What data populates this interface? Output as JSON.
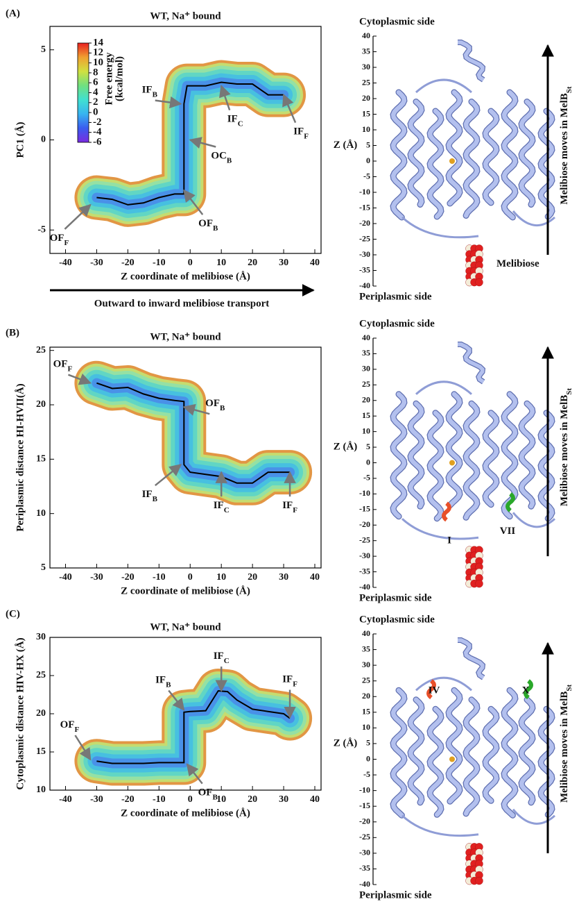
{
  "panels": [
    "(A)",
    "(B)",
    "(C)"
  ],
  "chart_data": [
    {
      "type": "energy_landscape",
      "title": "WT, Na⁺ bound",
      "x_label": "Z coordinate of melibiose (Å)",
      "y_label": "PC1 (Å)",
      "xlim": [
        -45,
        42
      ],
      "ylim": [
        -6.3,
        6.3
      ],
      "xticks": [
        -40,
        -30,
        -20,
        -10,
        0,
        10,
        20,
        30,
        40
      ],
      "yticks": [
        -5,
        0,
        5
      ],
      "path": {
        "x": [
          -30,
          -25,
          -20,
          -15,
          -10,
          -5,
          -2,
          -2,
          -2,
          -1,
          2,
          5,
          10,
          15,
          20,
          25,
          30
        ],
        "y": [
          -3.2,
          -3.3,
          -3.6,
          -3.5,
          -3.2,
          -3.0,
          -3.0,
          0,
          2,
          3,
          3,
          3,
          3.2,
          3.1,
          3.1,
          2.5,
          2.5
        ]
      },
      "color": "#000000",
      "surface_colors": [
        "#e0903a",
        "#c4df72",
        "#92e0a6",
        "#5ed5c6",
        "#46bfe2",
        "#4a8ee8"
      ],
      "annotations": [
        {
          "text": "OF",
          "sub": "F",
          "x": -32,
          "y": -3.6
        },
        {
          "text": "OF",
          "sub": "B",
          "x": -2,
          "y": -2.8
        },
        {
          "text": "OC",
          "sub": "B",
          "x": 0,
          "y": 0
        },
        {
          "text": "IF",
          "sub": "B",
          "x": -3,
          "y": 2
        },
        {
          "text": "IF",
          "sub": "C",
          "x": 10,
          "y": 3
        },
        {
          "text": "IF",
          "sub": "F",
          "x": 30,
          "y": 2.5
        }
      ],
      "colorbar": {
        "label": [
          "Free energy",
          "(kcal/mol)"
        ],
        "lim": [
          -6,
          14
        ],
        "ticks": [
          14,
          12,
          10,
          8,
          6,
          4,
          2,
          0,
          -2,
          -4,
          -6
        ],
        "colors": [
          "#7a2be0",
          "#3a5cf0",
          "#38b4f0",
          "#40e0d0",
          "#70e080",
          "#d0e040",
          "#f0a030",
          "#e82020"
        ]
      },
      "arrow_label": "Outward to inward melibiose transport"
    },
    {
      "type": "energy_landscape",
      "title": "WT, Na⁺ bound",
      "x_label": "Z coordinate of melibiose (Å)",
      "y_label": "Periplasmic distance HI-HVII(Å)",
      "xlim": [
        -45,
        42
      ],
      "ylim": [
        5,
        25.3
      ],
      "xticks": [
        -40,
        -30,
        -20,
        -10,
        0,
        10,
        20,
        30,
        40
      ],
      "yticks": [
        5,
        10,
        15,
        20,
        25
      ],
      "path": {
        "x": [
          -30,
          -25,
          -20,
          -15,
          -10,
          -5,
          -2,
          -2,
          -2,
          0,
          5,
          10,
          15,
          20,
          25,
          30,
          32
        ],
        "y": [
          22,
          21.5,
          21.6,
          21,
          20.6,
          20.4,
          20.3,
          17,
          14.5,
          13.8,
          13.6,
          13.4,
          12.8,
          12.8,
          13.8,
          13.8,
          13.8
        ]
      },
      "color": "#000000",
      "surface_colors": [
        "#e0903a",
        "#c4df72",
        "#92e0a6",
        "#5ed5c6",
        "#46bfe2",
        "#4a8ee8"
      ],
      "annotations": [
        {
          "text": "OF",
          "sub": "F",
          "x": -32,
          "y": 22
        },
        {
          "text": "OF",
          "sub": "B",
          "x": -2,
          "y": 19.8
        },
        {
          "text": "IF",
          "sub": "B",
          "x": -3,
          "y": 14.5
        },
        {
          "text": "IF",
          "sub": "C",
          "x": 10,
          "y": 13.8
        },
        {
          "text": "IF",
          "sub": "F",
          "x": 32,
          "y": 13.8
        }
      ]
    },
    {
      "type": "energy_landscape",
      "title": "WT, Na⁺ bound",
      "x_label": "Z coordinate of melibiose (Å)",
      "y_label": "Cytoplasmic distance HIV-HX (Å)",
      "xlim": [
        -45,
        42
      ],
      "ylim": [
        10,
        30
      ],
      "xticks": [
        -40,
        -30,
        -20,
        -10,
        0,
        10,
        20,
        30,
        40
      ],
      "yticks": [
        10,
        15,
        20,
        25,
        30
      ],
      "path": {
        "x": [
          -30,
          -25,
          -20,
          -15,
          -10,
          -5,
          -2,
          -2,
          -2,
          0,
          5,
          9,
          12,
          15,
          20,
          25,
          30,
          32
        ],
        "y": [
          13.8,
          13.5,
          13.5,
          13.5,
          13.6,
          13.6,
          13.6,
          17,
          20.2,
          20.3,
          20.4,
          23,
          22.9,
          21.8,
          20.6,
          20.3,
          20,
          19.4
        ]
      },
      "color": "#000000",
      "surface_colors": [
        "#e0903a",
        "#c4df72",
        "#92e0a6",
        "#5ed5c6",
        "#46bfe2",
        "#4a8ee8"
      ],
      "annotations": [
        {
          "text": "OF",
          "sub": "F",
          "x": -32,
          "y": 14
        },
        {
          "text": "OF",
          "sub": "B",
          "x": -1,
          "y": 13.4
        },
        {
          "text": "IF",
          "sub": "B",
          "x": -2,
          "y": 20.5
        },
        {
          "text": "IF",
          "sub": "C",
          "x": 10,
          "y": 23
        },
        {
          "text": "IF",
          "sub": "F",
          "x": 32,
          "y": 19.5
        }
      ]
    }
  ],
  "structures": [
    {
      "top_label": "Cytoplasmic side",
      "bottom_label": "Periplasmic side",
      "z_label": "Z (Å)",
      "zlim": [
        -40,
        40
      ],
      "zticks": [
        40,
        35,
        30,
        25,
        20,
        15,
        10,
        5,
        0,
        -5,
        -10,
        -15,
        -20,
        -25,
        -30,
        -35,
        -40
      ],
      "side_label": {
        "text": "Melibiose moves in MelB",
        "sub": "St"
      },
      "ligand_label": "Melibiose",
      "helix_labels": []
    },
    {
      "top_label": "Cytoplasmic side",
      "bottom_label": "Periplasmic side",
      "z_label": "Z (Å)",
      "zlim": [
        -40,
        40
      ],
      "zticks": [
        40,
        35,
        30,
        25,
        20,
        15,
        10,
        5,
        0,
        -5,
        -10,
        -15,
        -20,
        -25,
        -30,
        -35,
        -40
      ],
      "side_label": {
        "text": "Melibiose moves in MelB",
        "sub": "St"
      },
      "helix_labels": [
        {
          "text": "I",
          "color": "#e8502a"
        },
        {
          "text": "VII",
          "color": "#2aa82a"
        }
      ]
    },
    {
      "top_label": "Cytoplasmic side",
      "bottom_label": "Periplasmic side",
      "z_label": "Z (Å)",
      "zlim": [
        -40,
        40
      ],
      "zticks": [
        40,
        35,
        30,
        25,
        20,
        15,
        10,
        5,
        0,
        -5,
        -10,
        -15,
        -20,
        -25,
        -30,
        -35,
        -40
      ],
      "side_label": {
        "text": "Melibiose moves in MelB",
        "sub": "St"
      },
      "helix_labels": [
        {
          "text": "IV",
          "color": "#e8502a"
        },
        {
          "text": "X",
          "color": "#2aa82a"
        }
      ]
    }
  ]
}
